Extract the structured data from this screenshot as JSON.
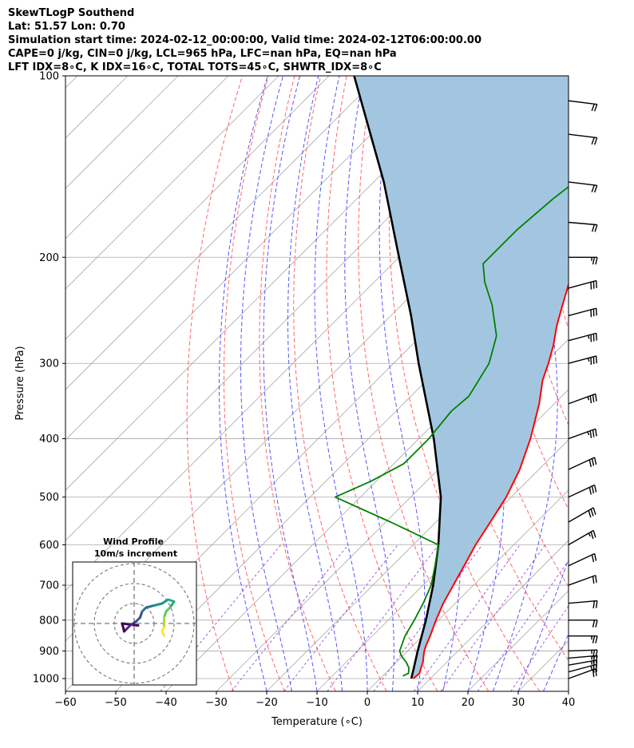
{
  "header": {
    "line1": "SkewTLogP Southend",
    "line2": "Lat: 51.57   Lon: 0.70",
    "line3": "Simulation start time: 2024-02-12_00:00:00, Valid time: 2024-02-12T06:00:00.00",
    "line4": "CAPE=0 j/kg, CIN=0 j/kg, LCL=965 hPa, LFC=nan hPa, EQ=nan hPa",
    "line5": "LFT IDX=8∘C, K IDX=16∘C, TOTAL TOTS=45∘C, SHWTR_IDX=8∘C"
  },
  "chart_data": {
    "type": "line",
    "xlabel": "Temperature (∘C)",
    "ylabel": "Pressure (hPa)",
    "xlim": [
      -60,
      40
    ],
    "ylim": [
      1050,
      100
    ],
    "yscale": "log",
    "skew": true,
    "grid": true,
    "x_ticks": [
      "−60",
      "−50",
      "−40",
      "−30",
      "−20",
      "−10",
      "0",
      "10",
      "20",
      "30",
      "40"
    ],
    "y_ticks": [
      "1000",
      "900",
      "800",
      "700",
      "600",
      "500",
      "400",
      "300",
      "200",
      "100"
    ],
    "series": [
      {
        "role": "temperature",
        "color": "#ff0000",
        "points": [
          [
            1000,
            6.6
          ],
          [
            980,
            6.8
          ],
          [
            960,
            6.0
          ],
          [
            940,
            5.3
          ],
          [
            920,
            4.3
          ],
          [
            900,
            3.3
          ],
          [
            880,
            2.5
          ],
          [
            850,
            1.5
          ],
          [
            800,
            -0.5
          ],
          [
            750,
            -2.4
          ],
          [
            700,
            -4.0
          ],
          [
            650,
            -5.7
          ],
          [
            600,
            -7.6
          ],
          [
            550,
            -9.2
          ],
          [
            500,
            -11.0
          ],
          [
            450,
            -13.8
          ],
          [
            400,
            -17.8
          ],
          [
            350,
            -23.0
          ],
          [
            320,
            -27.0
          ],
          [
            300,
            -29.2
          ],
          [
            280,
            -31.8
          ],
          [
            260,
            -35.0
          ],
          [
            240,
            -38.0
          ],
          [
            220,
            -41.2
          ],
          [
            200,
            -45.0
          ],
          [
            180,
            -48.5
          ],
          [
            160,
            -51.0
          ],
          [
            140,
            -53.0
          ],
          [
            120,
            -55.0
          ],
          [
            100,
            -56.0
          ]
        ]
      },
      {
        "role": "dewpoint",
        "color": "#008000",
        "points": [
          [
            990,
            4.0
          ],
          [
            980,
            4.6
          ],
          [
            960,
            3.6
          ],
          [
            940,
            2.0
          ],
          [
            920,
            0.0
          ],
          [
            900,
            -1.6
          ],
          [
            850,
            -3.5
          ],
          [
            800,
            -4.8
          ],
          [
            750,
            -6.4
          ],
          [
            700,
            -8.4
          ],
          [
            650,
            -11.5
          ],
          [
            600,
            -15.0
          ],
          [
            550,
            -29.0
          ],
          [
            500,
            -45.0
          ],
          [
            470,
            -41.0
          ],
          [
            440,
            -38.0
          ],
          [
            400,
            -38.0
          ],
          [
            360,
            -39.0
          ],
          [
            340,
            -38.5
          ],
          [
            300,
            -41.0
          ],
          [
            270,
            -45.0
          ],
          [
            240,
            -52.0
          ],
          [
            220,
            -58.0
          ],
          [
            205,
            -62.0
          ],
          [
            200,
            -62.0
          ],
          [
            180,
            -62.0
          ],
          [
            160,
            -61.0
          ],
          [
            140,
            -59.0
          ],
          [
            120,
            -57.5
          ],
          [
            100,
            -56.0
          ]
        ]
      },
      {
        "role": "parcel",
        "color": "#000000",
        "points": [
          [
            1000,
            6.2
          ],
          [
            965,
            4.8
          ],
          [
            900,
            2.0
          ],
          [
            800,
            -2.5
          ],
          [
            700,
            -8.0
          ],
          [
            600,
            -15.0
          ],
          [
            500,
            -24.0
          ],
          [
            400,
            -37.0
          ],
          [
            300,
            -55.0
          ],
          [
            250,
            -66.0
          ],
          [
            200,
            -80.0
          ],
          [
            150,
            -98.0
          ],
          [
            100,
            -125.0
          ]
        ]
      }
    ],
    "shading": {
      "between": "parcel-temperature",
      "color": "#a3c6e0"
    },
    "wind_barbs": [
      {
        "p": 1000,
        "spd_kt": 20,
        "dir": 250
      },
      {
        "p": 975,
        "spd_kt": 25,
        "dir": 255
      },
      {
        "p": 950,
        "spd_kt": 25,
        "dir": 260
      },
      {
        "p": 925,
        "spd_kt": 25,
        "dir": 265
      },
      {
        "p": 900,
        "spd_kt": 25,
        "dir": 268
      },
      {
        "p": 850,
        "spd_kt": 25,
        "dir": 270
      },
      {
        "p": 800,
        "spd_kt": 20,
        "dir": 270
      },
      {
        "p": 750,
        "spd_kt": 20,
        "dir": 265
      },
      {
        "p": 700,
        "spd_kt": 20,
        "dir": 250
      },
      {
        "p": 650,
        "spd_kt": 20,
        "dir": 245
      },
      {
        "p": 600,
        "spd_kt": 25,
        "dir": 240
      },
      {
        "p": 550,
        "spd_kt": 30,
        "dir": 240
      },
      {
        "p": 500,
        "spd_kt": 30,
        "dir": 245
      },
      {
        "p": 450,
        "spd_kt": 30,
        "dir": 245
      },
      {
        "p": 400,
        "spd_kt": 35,
        "dir": 250
      },
      {
        "p": 350,
        "spd_kt": 35,
        "dir": 250
      },
      {
        "p": 300,
        "spd_kt": 35,
        "dir": 255
      },
      {
        "p": 275,
        "spd_kt": 35,
        "dir": 255
      },
      {
        "p": 250,
        "spd_kt": 30,
        "dir": 255
      },
      {
        "p": 225,
        "spd_kt": 30,
        "dir": 255
      },
      {
        "p": 200,
        "spd_kt": 25,
        "dir": 270
      },
      {
        "p": 175,
        "spd_kt": 20,
        "dir": 275
      },
      {
        "p": 150,
        "spd_kt": 20,
        "dir": 277
      },
      {
        "p": 125,
        "spd_kt": 20,
        "dir": 277
      },
      {
        "p": 110,
        "spd_kt": 20,
        "dir": 277
      }
    ],
    "inset": {
      "title_line1": "Wind Profile",
      "title_line2": "10m/s increment",
      "rings_ms": [
        10,
        20,
        30
      ],
      "hodograph_uv": [
        [
          2,
          -1
        ],
        [
          -6,
          0
        ],
        [
          -5,
          -4
        ],
        [
          -4,
          -3
        ],
        [
          -2,
          -1
        ],
        [
          1,
          1
        ],
        [
          3,
          3
        ],
        [
          4,
          6
        ],
        [
          6,
          8
        ],
        [
          10,
          9
        ],
        [
          14,
          10
        ],
        [
          17,
          12
        ],
        [
          20,
          11
        ],
        [
          18,
          8
        ],
        [
          16,
          6
        ],
        [
          15,
          3
        ],
        [
          15,
          1
        ],
        [
          15,
          -2
        ],
        [
          14,
          -4
        ],
        [
          15,
          -6
        ]
      ]
    }
  }
}
